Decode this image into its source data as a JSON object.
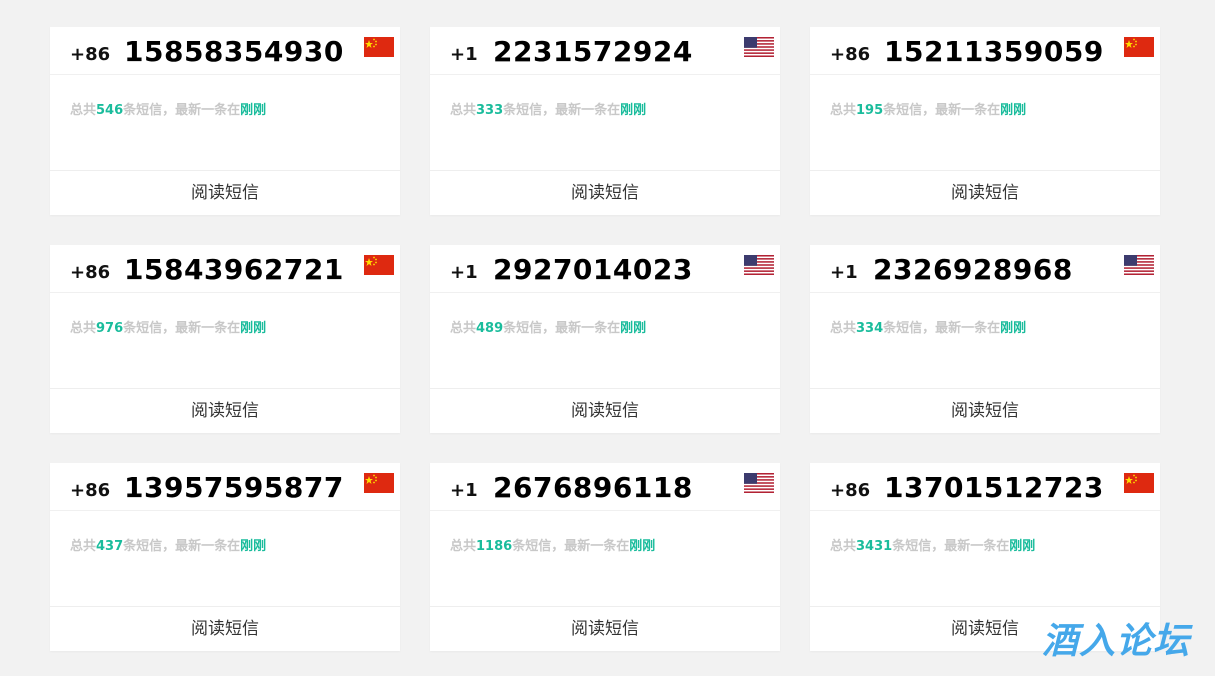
{
  "cards": [
    {
      "country_code": "+86",
      "number": "15858354930",
      "flag": "china-flag",
      "total_prefix": "总共",
      "count": "546",
      "total_suffix": "条短信，最新一条在",
      "latest": "刚刚",
      "action": "阅读短信"
    },
    {
      "country_code": "+1",
      "number": "2231572924",
      "flag": "usa-flag",
      "total_prefix": "总共",
      "count": "333",
      "total_suffix": "条短信，最新一条在",
      "latest": "刚刚",
      "action": "阅读短信"
    },
    {
      "country_code": "+86",
      "number": "15211359059",
      "flag": "china-flag",
      "total_prefix": "总共",
      "count": "195",
      "total_suffix": "条短信，最新一条在",
      "latest": "刚刚",
      "action": "阅读短信"
    },
    {
      "country_code": "+86",
      "number": "15843962721",
      "flag": "china-flag",
      "total_prefix": "总共",
      "count": "976",
      "total_suffix": "条短信，最新一条在",
      "latest": "刚刚",
      "action": "阅读短信"
    },
    {
      "country_code": "+1",
      "number": "2927014023",
      "flag": "usa-flag",
      "total_prefix": "总共",
      "count": "489",
      "total_suffix": "条短信，最新一条在",
      "latest": "刚刚",
      "action": "阅读短信"
    },
    {
      "country_code": "+1",
      "number": "2326928968",
      "flag": "usa-flag",
      "total_prefix": "总共",
      "count": "334",
      "total_suffix": "条短信，最新一条在",
      "latest": "刚刚",
      "action": "阅读短信"
    },
    {
      "country_code": "+86",
      "number": "13957595877",
      "flag": "china-flag",
      "total_prefix": "总共",
      "count": "437",
      "total_suffix": "条短信，最新一条在",
      "latest": "刚刚",
      "action": "阅读短信"
    },
    {
      "country_code": "+1",
      "number": "2676896118",
      "flag": "usa-flag",
      "total_prefix": "总共",
      "count": "1186",
      "total_suffix": "条短信，最新一条在",
      "latest": "刚刚",
      "action": "阅读短信"
    },
    {
      "country_code": "+86",
      "number": "13701512723",
      "flag": "china-flag",
      "total_prefix": "总共",
      "count": "3431",
      "total_suffix": "条短信，最新一条在",
      "latest": "刚刚",
      "action": "阅读短信"
    }
  ],
  "watermark": "酒入论坛",
  "colors": {
    "accent": "#1abc9c",
    "watermark": "#45a8ea",
    "background": "#f2f2f2"
  }
}
